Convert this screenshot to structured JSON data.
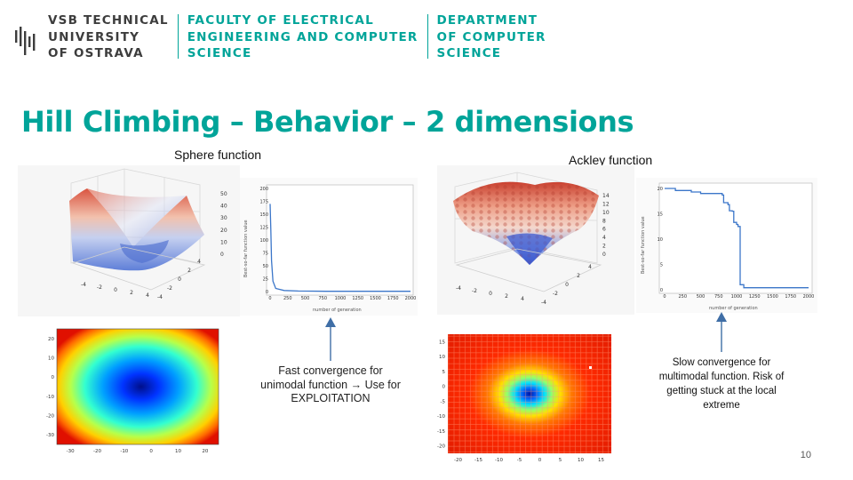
{
  "header": {
    "university_lines": [
      "VSB TECHNICAL",
      "UNIVERSITY",
      "OF OSTRAVA"
    ],
    "faculty_lines": [
      "FACULTY OF ELECTRICAL",
      "ENGINEERING AND COMPUTER",
      "SCIENCE"
    ],
    "department_lines": [
      "DEPARTMENT",
      "OF COMPUTER",
      "SCIENCE"
    ]
  },
  "slide": {
    "title": "Hill Climbing – Behavior – 2 dimensions",
    "page_number": "10"
  },
  "sphere": {
    "caption": "Sphere function",
    "note": [
      "Fast convergence for",
      "unimodal function → Use for",
      "EXPLOITATION"
    ]
  },
  "ackley": {
    "caption": "Ackley function",
    "note": [
      "Slow convergence for",
      "multimodal function. Risk of",
      "getting stuck at the local",
      "extreme"
    ]
  },
  "colors": {
    "accent": "#00a499",
    "arrow": "#3f6ea6"
  },
  "chart_data": [
    {
      "type": "surface",
      "z_tick_labels": [
        "50",
        "40",
        "30",
        "20",
        "10",
        "0"
      ],
      "x_tick_labels": [
        "-4",
        "-2",
        "0",
        "2",
        "4"
      ],
      "y_tick_labels": [
        "-4",
        "-2",
        "0",
        "2",
        "4"
      ]
    },
    {
      "type": "line",
      "xlabel": "number of generation",
      "ylabel": "Best-so-far function value",
      "x_ticks": [
        "0",
        "250",
        "500",
        "750",
        "1000",
        "1250",
        "1500",
        "1750",
        "2000"
      ],
      "y_ticks": [
        "0",
        "25",
        "50",
        "75",
        "100",
        "125",
        "150",
        "175",
        "200"
      ],
      "xlim": [
        0,
        2000
      ],
      "ylim": [
        0,
        200
      ],
      "x": [
        0,
        10,
        20,
        40,
        80,
        200,
        400,
        800,
        1200,
        1600,
        2000
      ],
      "y": [
        170,
        120,
        60,
        20,
        6,
        2,
        1,
        0.6,
        0.5,
        0.5,
        0.5
      ]
    },
    {
      "type": "heatmap",
      "x_ticks": [
        "-30",
        "-20",
        "-10",
        "0",
        "10",
        "20"
      ],
      "y_ticks": [
        "20",
        "10",
        "0",
        "-10",
        "-20",
        "-30"
      ]
    },
    {
      "type": "surface",
      "z_tick_labels": [
        "14",
        "12",
        "10",
        "8",
        "6",
        "4",
        "2",
        "0"
      ],
      "x_tick_labels": [
        "-4",
        "-2",
        "0",
        "2",
        "4"
      ],
      "y_tick_labels": [
        "-4",
        "-2",
        "0",
        "2",
        "4"
      ]
    },
    {
      "type": "line",
      "xlabel": "number of generation",
      "ylabel": "Best-so-far function value",
      "x_ticks": [
        "0",
        "250",
        "500",
        "750",
        "1000",
        "1250",
        "1500",
        "1750",
        "2000"
      ],
      "y_ticks": [
        "0",
        "5",
        "10",
        "15",
        "20"
      ],
      "xlim": [
        0,
        2000
      ],
      "ylim": [
        0,
        20
      ],
      "x": [
        0,
        150,
        350,
        370,
        500,
        800,
        820,
        880,
        900,
        940,
        960,
        1000,
        1020,
        1050,
        1100,
        2000
      ],
      "y": [
        20,
        19.6,
        19.6,
        19.3,
        19.0,
        18.7,
        17.2,
        16.8,
        15.6,
        15.5,
        13.3,
        12.9,
        12.5,
        1.0,
        0.4,
        0.4
      ]
    },
    {
      "type": "heatmap",
      "x_ticks": [
        "-20",
        "-15",
        "-10",
        "-5",
        "0",
        "5",
        "10",
        "15"
      ],
      "y_ticks": [
        "15",
        "10",
        "5",
        "0",
        "-5",
        "-10",
        "-15",
        "-20"
      ]
    }
  ]
}
